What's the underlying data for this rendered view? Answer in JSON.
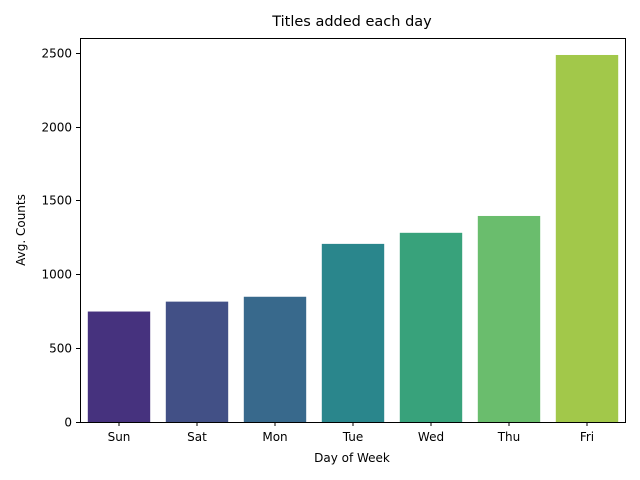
{
  "chart_data": {
    "type": "bar",
    "title": "Titles added each day",
    "xlabel": "Day of Week",
    "ylabel": "Avg. Counts",
    "categories": [
      "Sun",
      "Sat",
      "Mon",
      "Tue",
      "Wed",
      "Thu",
      "Fri"
    ],
    "values": [
      748,
      815,
      848,
      1206,
      1281,
      1395,
      2485
    ],
    "colors": [
      "#46327e",
      "#425086",
      "#38698c",
      "#2a868c",
      "#38a27b",
      "#6abd6d",
      "#a2c84a"
    ],
    "ylim": [
      0,
      2600
    ],
    "yticks": [
      0,
      500,
      1000,
      1500,
      2000,
      2500
    ],
    "grid": false,
    "legend": "none"
  }
}
